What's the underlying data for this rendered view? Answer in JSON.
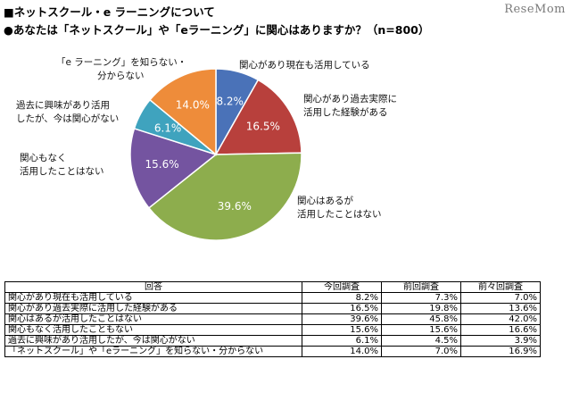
{
  "header": {
    "title": "■ネットスクール・e ラーニングについて",
    "question": "●あなたは「ネットスクール」や「eラーニング」に関心はありますか？（n=800）",
    "logo": "ReseMom"
  },
  "colors": {
    "slice1": "#4a72b8",
    "slice2": "#b8403c",
    "slice3": "#8dad4d",
    "slice4": "#7454a0",
    "slice5": "#3fa3be",
    "slice6": "#ee8c3a"
  },
  "chart_data": {
    "type": "pie",
    "title": "あなたは「ネットスクール」や「eラーニング」に関心はありますか？（n=800）",
    "slices": [
      {
        "label": "関心があり現在も活用している",
        "value": 8.2,
        "value_label": "8.2%"
      },
      {
        "label": "関心があり過去実際に活用した経験がある",
        "value": 16.5,
        "value_label": "16.5%"
      },
      {
        "label": "関心はあるが活用したことはない",
        "value": 39.6,
        "value_label": "39.6%"
      },
      {
        "label": "関心もなく活用したことはない",
        "value": 15.6,
        "value_label": "15.6%"
      },
      {
        "label": "過去に興味があり活用したが、今は関心がない",
        "value": 6.1,
        "value_label": "6.1%"
      },
      {
        "label": "「e ラーニング」を知らない・分からない",
        "value": 14.0,
        "value_label": "14.0%"
      }
    ]
  },
  "labels": {
    "s1": [
      "関心があり現在も活用している"
    ],
    "s2": [
      "関心があり過去実際に",
      "活用した経験がある"
    ],
    "s3": [
      "関心はあるが",
      "活用したことはない"
    ],
    "s4": [
      "関心もなく",
      "活用したことはない"
    ],
    "s5": [
      "過去に興味があり活用",
      "したが、今は関心がない"
    ],
    "s6": [
      "「e ラーニング」を知らない・",
      "分からない"
    ]
  },
  "table": {
    "headers": [
      "回答",
      "今回調査",
      "前回調査",
      "前々回調査"
    ],
    "rows": [
      [
        "関心があり現在も活用している",
        "8.2%",
        "7.3%",
        "7.0%"
      ],
      [
        "関心があり過去実際に活用した経験がある",
        "16.5%",
        "19.8%",
        "13.6%"
      ],
      [
        "関心はあるが活用したことはない",
        "39.6%",
        "45.8%",
        "42.0%"
      ],
      [
        "関心もなく活用したこともない",
        "15.6%",
        "15.6%",
        "16.6%"
      ],
      [
        "過去に興味があり活用したが、今は関心がない",
        "6.1%",
        "4.5%",
        "3.9%"
      ],
      [
        "「ネットスクール」や「eラーニング」を知らない・分からない",
        "14.0%",
        "7.0%",
        "16.9%"
      ]
    ]
  }
}
